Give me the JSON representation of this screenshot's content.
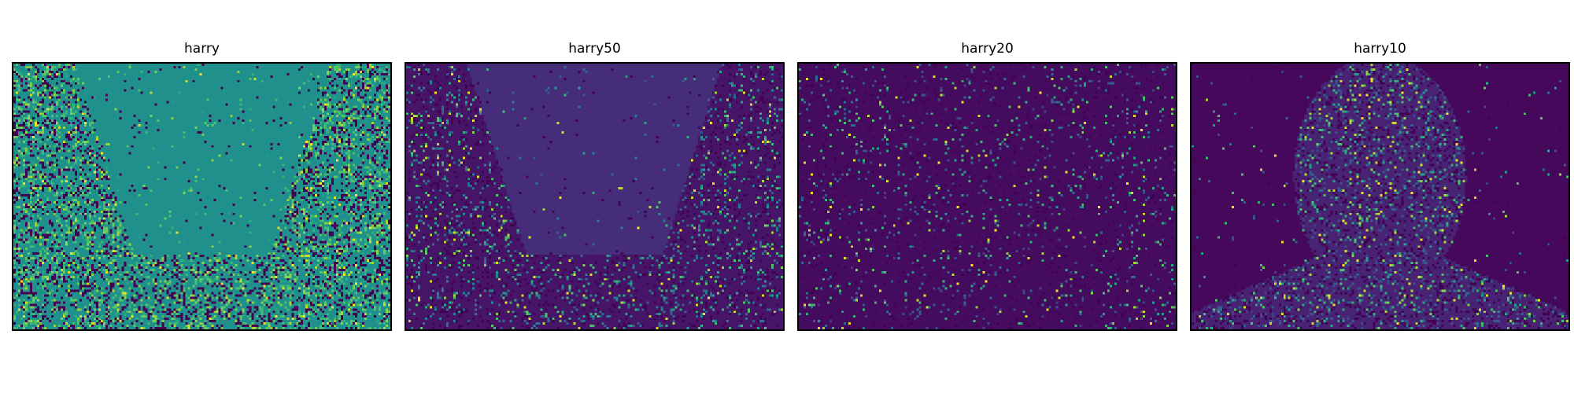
{
  "chart_data": [
    {
      "type": "heatmap",
      "title": "harry",
      "colormap": "viridis",
      "background_level": 0.5,
      "noise_density": 0.42,
      "region": "side bands outside a central inverted arch shape",
      "grid": false,
      "axes_visible": false
    },
    {
      "type": "heatmap",
      "title": "harry50",
      "colormap": "viridis",
      "background_level": 0.13,
      "noise_density": 0.22,
      "region": "side bands outside a central inverted arch shape",
      "grid": false,
      "axes_visible": false
    },
    {
      "type": "heatmap",
      "title": "harry20",
      "colormap": "viridis",
      "background_level": 0.03,
      "noise_density": 0.12,
      "region": "sparse speckle across the image with faint diagonal bands",
      "grid": false,
      "axes_visible": false
    },
    {
      "type": "heatmap",
      "title": "harry10",
      "colormap": "viridis",
      "background_level": 0.02,
      "noise_density": 0.3,
      "region": "face-and-shoulders silhouette in the center",
      "grid": false,
      "axes_visible": false
    }
  ]
}
